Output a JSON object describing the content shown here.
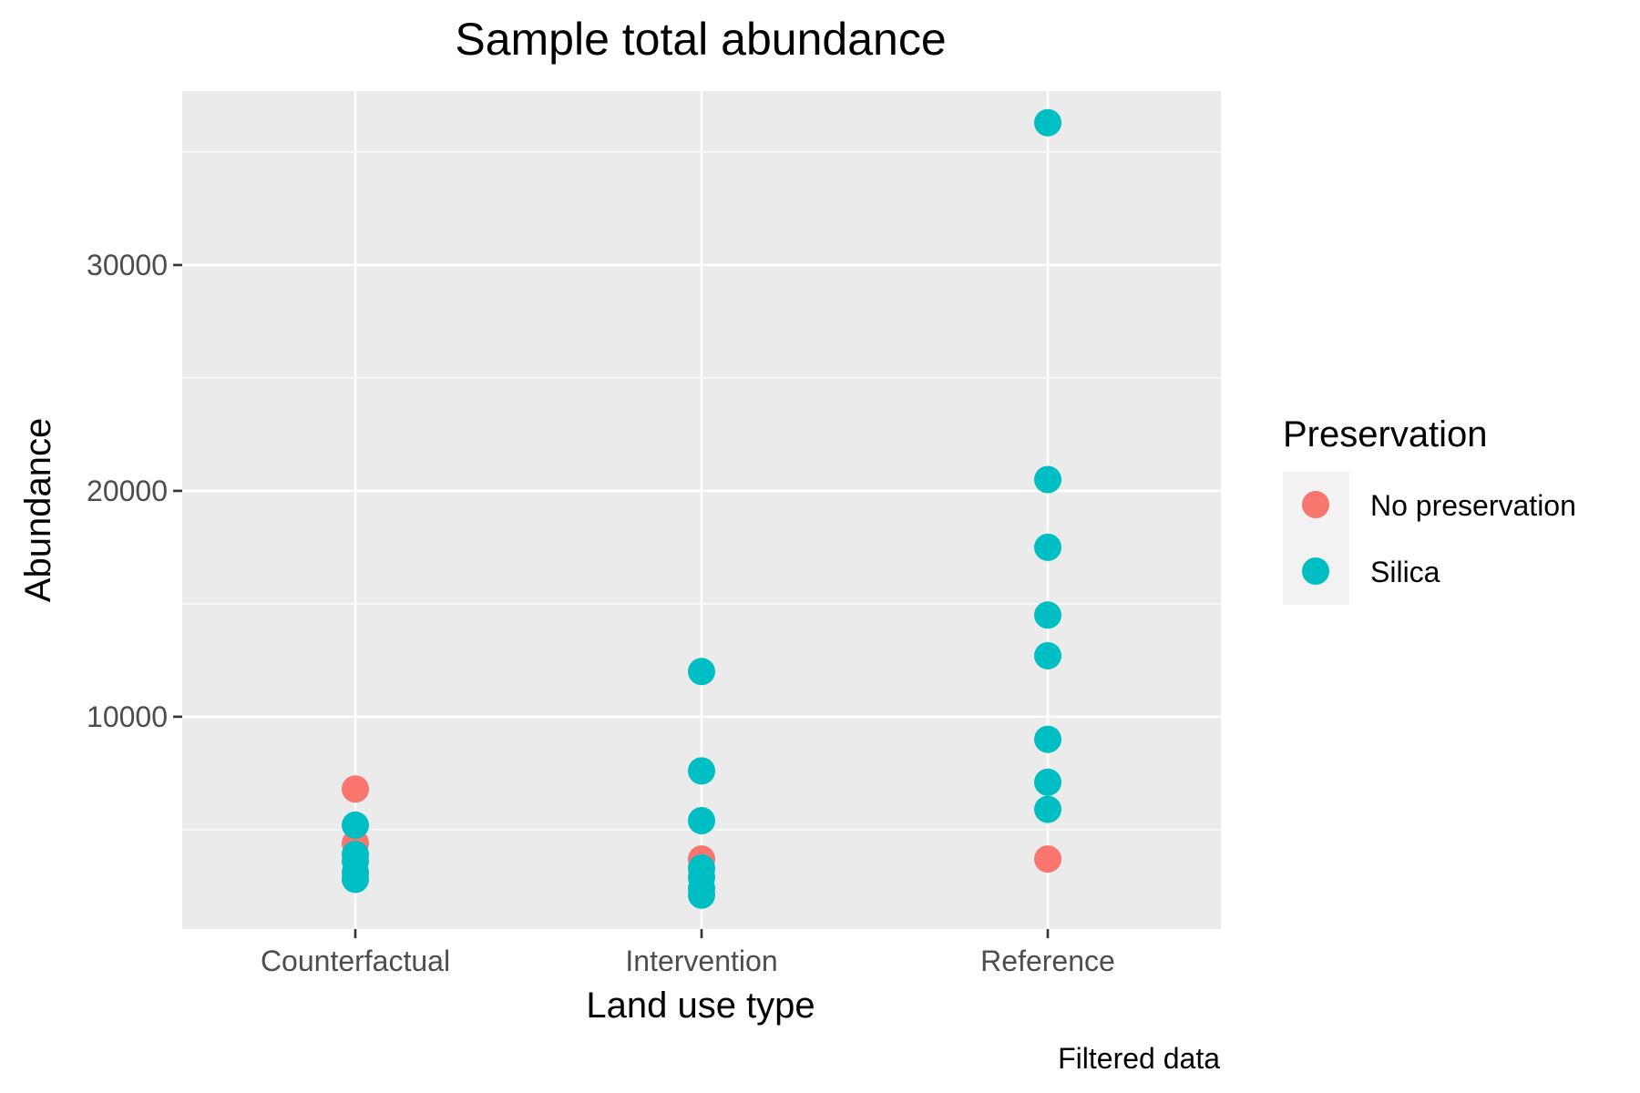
{
  "chart_data": {
    "type": "scatter",
    "title": "Sample total abundance",
    "xlabel": "Land use type",
    "ylabel": "Abundance",
    "caption": "Filtered data",
    "categories": [
      "Counterfactual",
      "Intervention",
      "Reference"
    ],
    "y_ticks": [
      10000,
      20000,
      30000
    ],
    "y_tick_labels": [
      "10000",
      "20000",
      "30000"
    ],
    "ylim": [
      600,
      37700
    ],
    "grid": true,
    "legend": {
      "title": "Preservation",
      "position": "right",
      "entries": [
        {
          "name": "No preservation",
          "color": "#F8766D"
        },
        {
          "name": "Silica",
          "color": "#00BFC4"
        }
      ]
    },
    "series": [
      {
        "name": "No preservation",
        "color": "#F8766D",
        "points": [
          {
            "x": "Counterfactual",
            "y": 6800
          },
          {
            "x": "Counterfactual",
            "y": 4400
          },
          {
            "x": "Intervention",
            "y": 3700
          },
          {
            "x": "Reference",
            "y": 3700
          }
        ]
      },
      {
        "name": "Silica",
        "color": "#00BFC4",
        "points": [
          {
            "x": "Counterfactual",
            "y": 5200
          },
          {
            "x": "Counterfactual",
            "y": 3900
          },
          {
            "x": "Counterfactual",
            "y": 3600
          },
          {
            "x": "Counterfactual",
            "y": 3100
          },
          {
            "x": "Counterfactual",
            "y": 2800
          },
          {
            "x": "Intervention",
            "y": 12000
          },
          {
            "x": "Intervention",
            "y": 7600
          },
          {
            "x": "Intervention",
            "y": 5400
          },
          {
            "x": "Intervention",
            "y": 3300
          },
          {
            "x": "Intervention",
            "y": 2900
          },
          {
            "x": "Intervention",
            "y": 2400
          },
          {
            "x": "Intervention",
            "y": 2100
          },
          {
            "x": "Reference",
            "y": 36300
          },
          {
            "x": "Reference",
            "y": 20500
          },
          {
            "x": "Reference",
            "y": 17500
          },
          {
            "x": "Reference",
            "y": 14500
          },
          {
            "x": "Reference",
            "y": 12700
          },
          {
            "x": "Reference",
            "y": 9000
          },
          {
            "x": "Reference",
            "y": 7100
          },
          {
            "x": "Reference",
            "y": 5900
          }
        ]
      }
    ]
  }
}
